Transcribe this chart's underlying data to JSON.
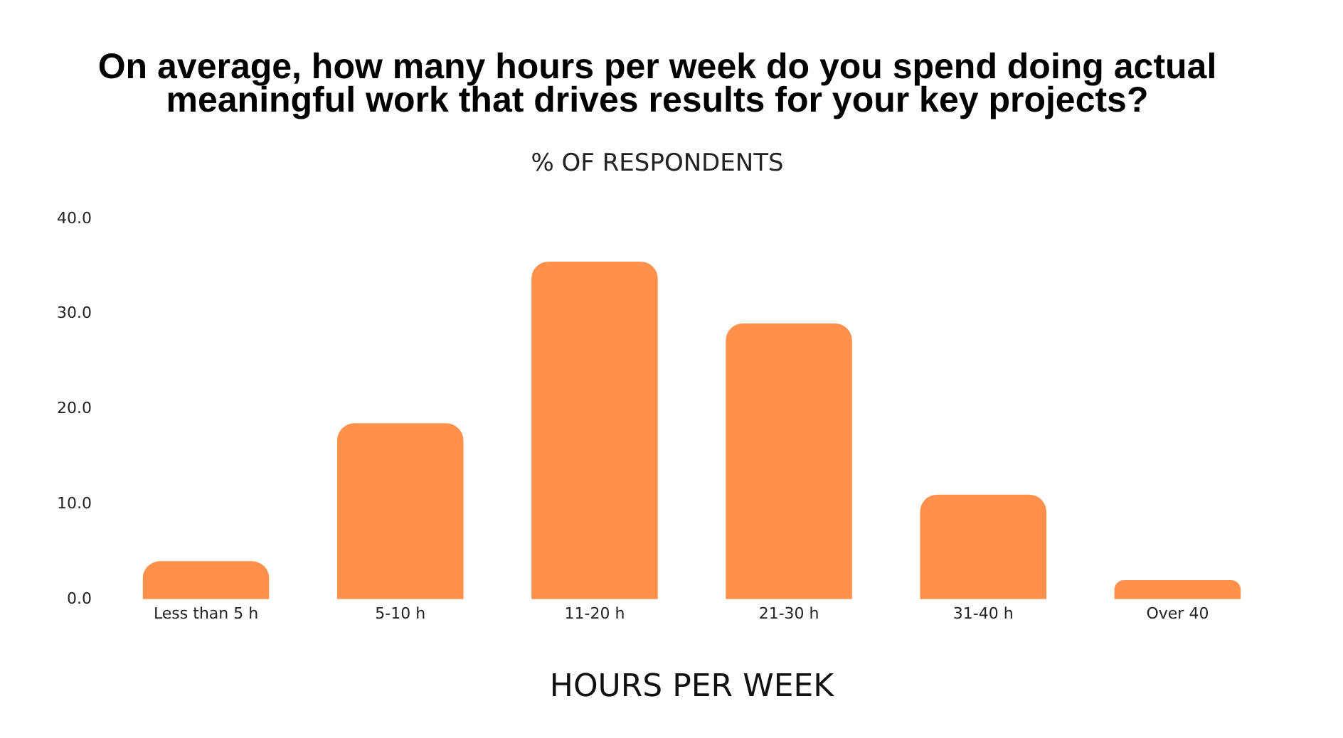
{
  "chart_data": {
    "type": "bar",
    "title": [
      "On average, how many hours per week do you spend doing actual",
      "meaningful work that drives results for your key projects?"
    ],
    "subtitle": "% OF RESPONDENTS",
    "xlabel": "HOURS PER WEEK",
    "categories": [
      "Less than 5 h",
      "5-10 h",
      "11-20 h",
      "21-30 h",
      "31-40 h",
      "Over 40"
    ],
    "values": [
      4.0,
      18.5,
      35.5,
      29.0,
      11.0,
      2.0
    ],
    "color": "#ff914d",
    "ylim": [
      0,
      40
    ],
    "yticks": [
      {
        "value": 0,
        "label": "0.0"
      },
      {
        "value": 10,
        "label": "10.0"
      },
      {
        "value": 20,
        "label": "20.0"
      },
      {
        "value": 30,
        "label": "30.0"
      },
      {
        "value": 40,
        "label": "40.0"
      }
    ],
    "grid": false,
    "legend": false
  }
}
